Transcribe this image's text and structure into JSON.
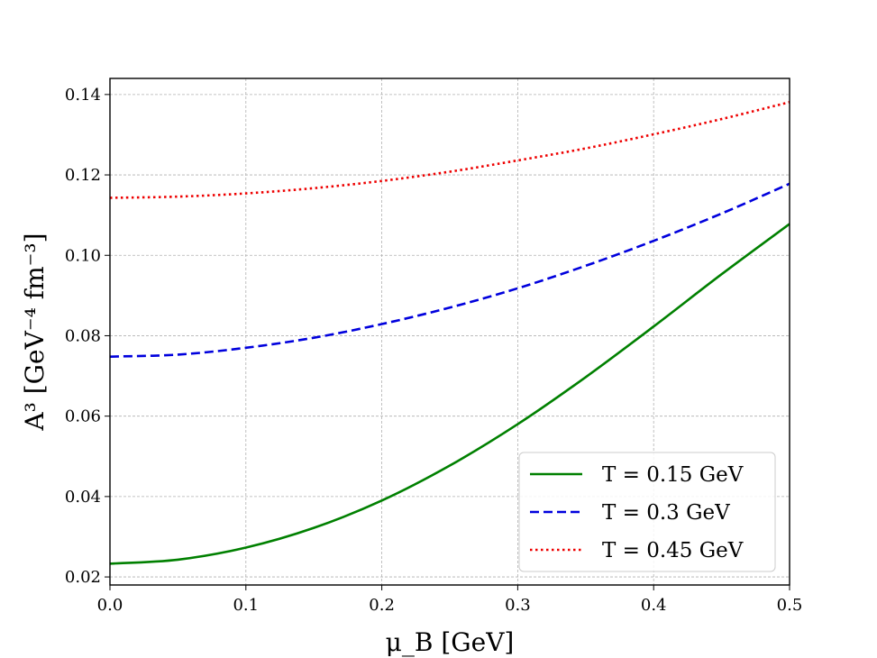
{
  "chart_data": {
    "type": "line",
    "title": "",
    "xlabel": "μ_B [GeV]",
    "ylabel": "A³ [GeV⁻⁴ fm⁻³]",
    "xlim": [
      0.0,
      0.5
    ],
    "ylim": [
      0.018,
      0.144
    ],
    "x_ticks": [
      "0.0",
      "0.1",
      "0.2",
      "0.3",
      "0.4",
      "0.5"
    ],
    "y_ticks": [
      "0.02",
      "0.04",
      "0.06",
      "0.08",
      "0.10",
      "0.12",
      "0.14"
    ],
    "grid": true,
    "legend_position": "lower-right",
    "x": [
      0.0,
      0.05,
      0.1,
      0.15,
      0.2,
      0.25,
      0.3,
      0.35,
      0.4,
      0.45,
      0.5
    ],
    "series": [
      {
        "name": "T = 0.15 GeV",
        "color": "#008000",
        "style": "solid",
        "values": [
          0.0233,
          0.0243,
          0.0273,
          0.0322,
          0.039,
          0.0477,
          0.058,
          0.0697,
          0.0823,
          0.0953,
          0.1078
        ]
      },
      {
        "name": "T = 0.3 GeV",
        "color": "#0000dd",
        "style": "dashed",
        "values": [
          0.0748,
          0.0753,
          0.077,
          0.0795,
          0.0829,
          0.087,
          0.0918,
          0.0974,
          0.1036,
          0.1104,
          0.1178
        ]
      },
      {
        "name": "T = 0.45 GeV",
        "color": "#ee0000",
        "style": "dotted",
        "values": [
          0.1143,
          0.1146,
          0.1154,
          0.1167,
          0.1185,
          0.1208,
          0.1236,
          0.1266,
          0.1301,
          0.1339,
          0.1381
        ]
      }
    ]
  }
}
